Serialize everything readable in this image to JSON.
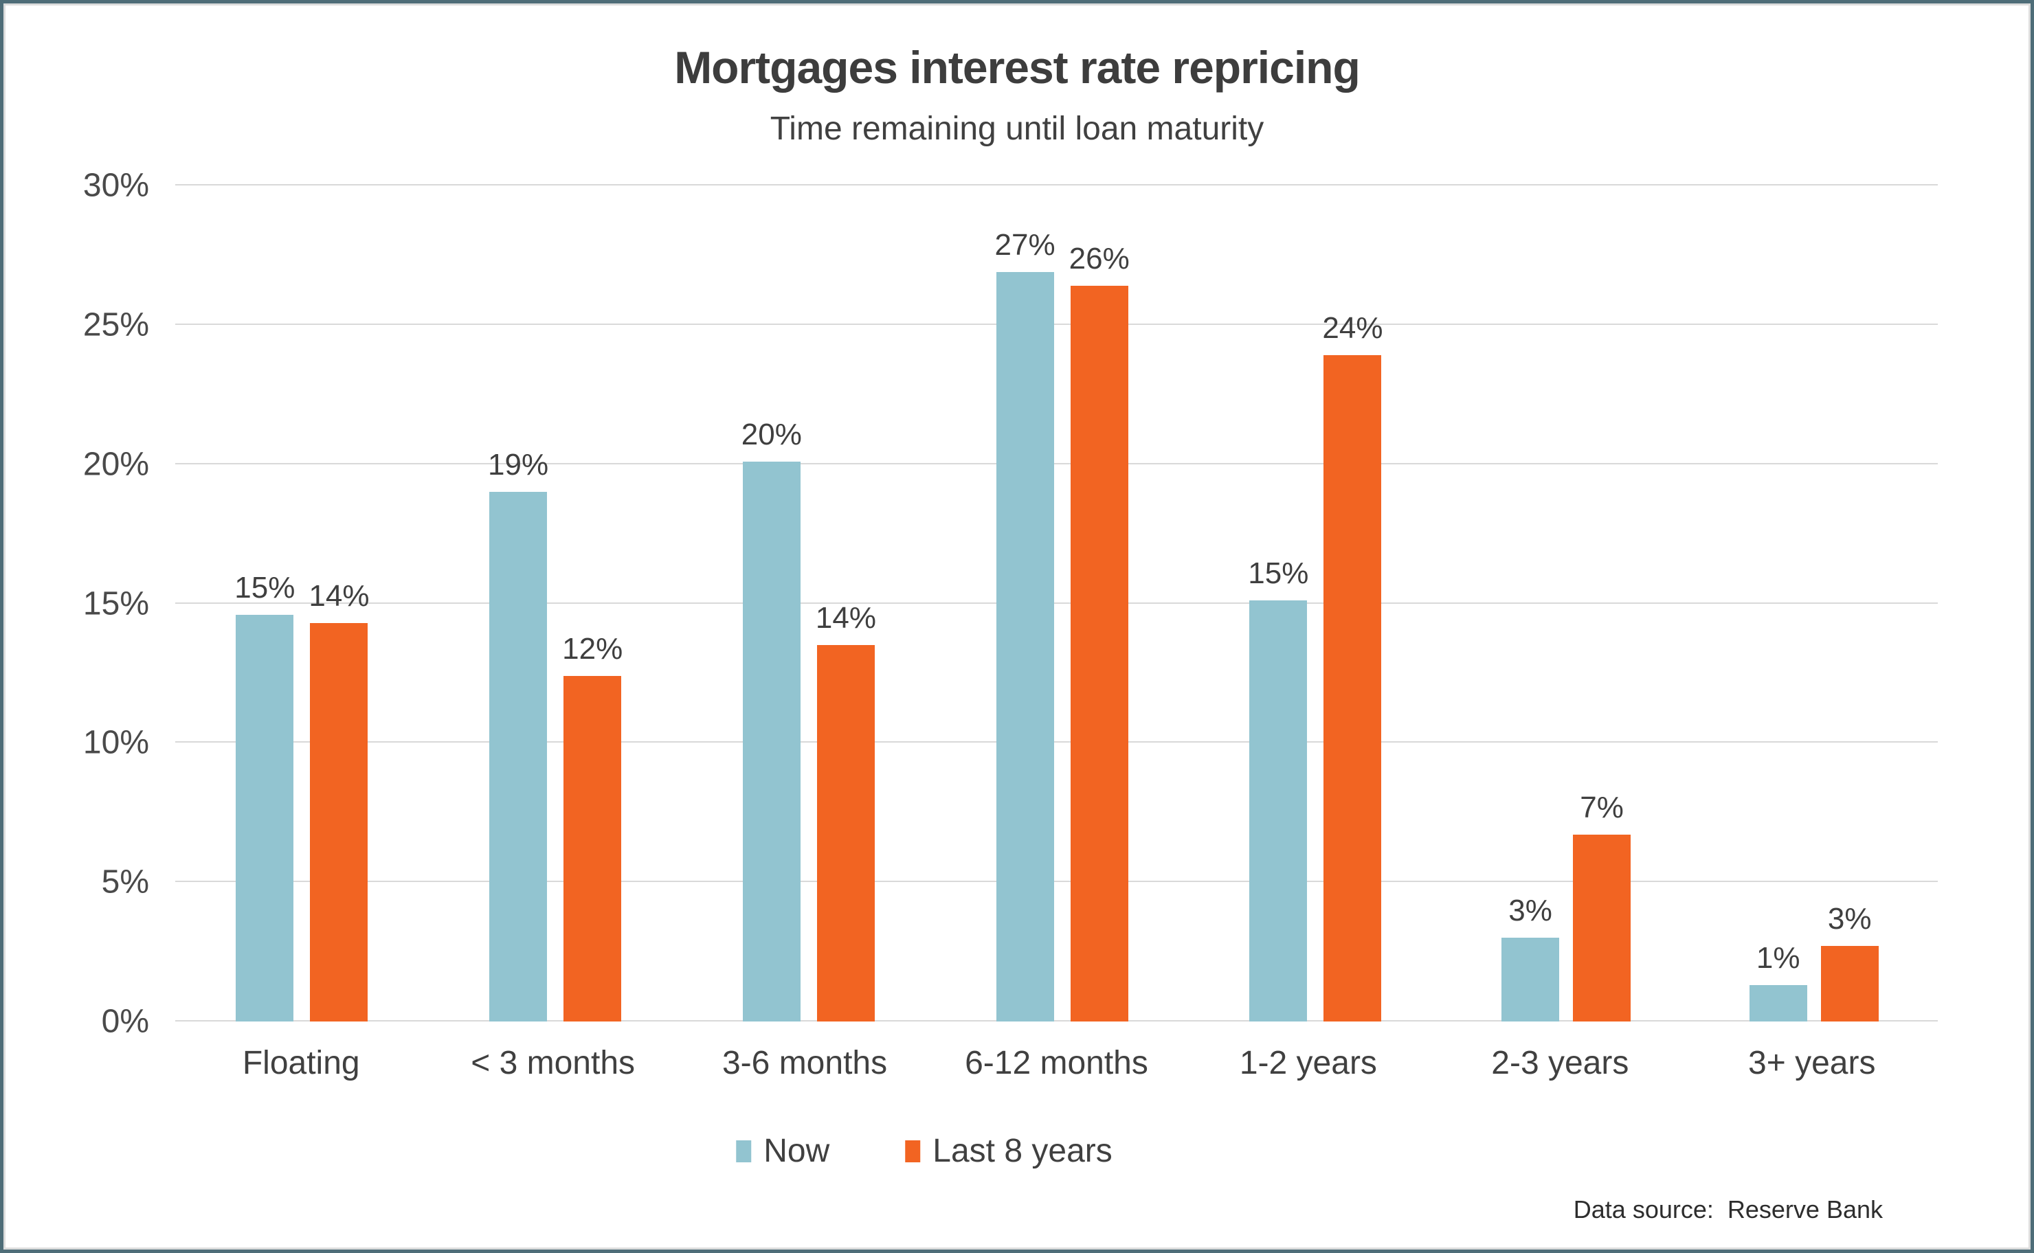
{
  "title": "Mortgages interest rate repricing",
  "subtitle": "Time remaining until loan maturity",
  "source_text": "Data source:  Reserve Bank",
  "legend": [
    {
      "label": "Now",
      "color": "#92c4d0"
    },
    {
      "label": "Last 8 years",
      "color": "#f26422"
    }
  ],
  "colors": {
    "now": "#92c4d0",
    "last_8_years": "#f26422",
    "frame_border": "#4e6d78",
    "gridline": "#d9d9d9",
    "text": "#3f3f3f"
  },
  "chart_data": {
    "type": "bar",
    "title": "Mortgages interest rate repricing",
    "subtitle": "Time remaining until loan maturity",
    "categories": [
      "Floating",
      "< 3 months",
      "3-6 months",
      "6-12 months",
      "1-2 years",
      "2-3 years",
      "3+ years"
    ],
    "series": [
      {
        "name": "Now",
        "color": "#92c4d0",
        "values": [
          14.6,
          19.0,
          20.1,
          26.9,
          15.1,
          3.0,
          1.3
        ],
        "labels": [
          "15%",
          "19%",
          "20%",
          "27%",
          "15%",
          "3%",
          "1%"
        ]
      },
      {
        "name": "Last 8 years",
        "color": "#f26422",
        "values": [
          14.3,
          12.4,
          13.5,
          26.4,
          23.9,
          6.7,
          2.7
        ],
        "labels": [
          "14%",
          "12%",
          "14%",
          "26%",
          "24%",
          "7%",
          "3%"
        ]
      }
    ],
    "xlabel": "",
    "ylabel": "",
    "ylim": [
      0,
      30
    ],
    "y_ticks": [
      {
        "value": 0,
        "label": "0%"
      },
      {
        "value": 5,
        "label": "5%"
      },
      {
        "value": 10,
        "label": "10%"
      },
      {
        "value": 15,
        "label": "15%"
      },
      {
        "value": 20,
        "label": "20%"
      },
      {
        "value": 25,
        "label": "25%"
      },
      {
        "value": 30,
        "label": "30%"
      }
    ],
    "grid": true,
    "legend_position": "bottom",
    "data_source": "Reserve Bank"
  }
}
